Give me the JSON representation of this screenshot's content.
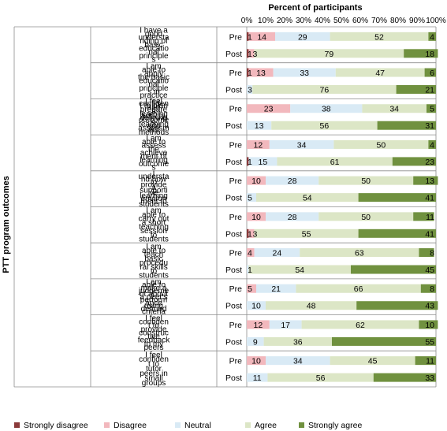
{
  "chart_data": {
    "type": "bar",
    "stacked": true,
    "orientation": "horizontal",
    "title": "Percent of participants",
    "ylabel": "PTT program outcomes",
    "x_ticks": [
      "0%",
      "10%",
      "20%",
      "30%",
      "40%",
      "50%",
      "60%",
      "70%",
      "80%",
      "90%",
      "100%"
    ],
    "xlim": [
      0,
      100
    ],
    "series": [
      {
        "name": "Strongly disagree",
        "color": "#8b3a3a"
      },
      {
        "name": "Disagree",
        "color": "#f2b8bd"
      },
      {
        "name": "Neutral",
        "color": "#d9eaf5"
      },
      {
        "name": "Agree",
        "color": "#dce6c6"
      },
      {
        "name": "Strongly agree",
        "color": "#70913f"
      }
    ],
    "legend_position": "bottom",
    "groups": [
      {
        "category_lines": [
          "I have a",
          "good",
          "understa",
          "nding of",
          "basic",
          "educatio",
          "nal",
          "principle",
          "s"
        ],
        "rows": [
          {
            "label": "Pre",
            "values": [
              1,
              14,
              29,
              52,
              4
            ]
          },
          {
            "label": "Post",
            "values": [
              1,
              3,
              0,
              79,
              18
            ]
          }
        ]
      },
      {
        "category_lines": [
          "I am",
          "able to",
          "apply",
          "the basic",
          "educatio",
          "nal",
          "principle",
          "s in",
          "practice"
        ],
        "rows": [
          {
            "label": "Pre",
            "values": [
              1,
              13,
              33,
              47,
              6
            ]
          },
          {
            "label": "Post",
            "values": [
              0,
              0,
              3,
              76,
              21
            ]
          }
        ]
      },
      {
        "category_lines": [
          "I feel",
          "confiden",
          "t to plan",
          "and",
          "prepare",
          "a",
          "learning",
          "activity,",
          "defining",
          "outcome",
          "s,",
          "teaching",
          "and",
          "assessm",
          "ent",
          "methods"
        ],
        "rows": [
          {
            "label": "Pre",
            "values": [
              0,
              23,
              38,
              34,
              5
            ]
          },
          {
            "label": "Post",
            "values": [
              0,
              0,
              13,
              56,
              31
            ]
          }
        ]
      },
      {
        "category_lines": [
          "I am",
          "able to",
          "assess",
          "the",
          "achieve",
          "ment of",
          "learning",
          "outcome",
          "s"
        ],
        "rows": [
          {
            "label": "Pre",
            "values": [
              0,
              12,
              34,
              50,
              4
            ]
          },
          {
            "label": "Post",
            "values": [
              1,
              0,
              15,
              61,
              23
            ]
          }
        ]
      },
      {
        "category_lines": [
          "I",
          "understa",
          "nd how",
          "to",
          "provide",
          "a",
          "supporti",
          "ve",
          "learning",
          "environ",
          "ment to",
          "students"
        ],
        "rows": [
          {
            "label": "Pre",
            "values": [
              0,
              10,
              28,
              50,
              13
            ]
          },
          {
            "label": "Post",
            "values": [
              0,
              0,
              5,
              54,
              41
            ]
          }
        ]
      },
      {
        "category_lines": [
          "I am",
          "able to",
          "carry out",
          "a short",
          "teaching",
          "session",
          "to",
          "students"
        ],
        "rows": [
          {
            "label": "Pre",
            "values": [
              0,
              10,
              28,
              50,
              11
            ]
          },
          {
            "label": "Post",
            "values": [
              1,
              3,
              0,
              55,
              41
            ]
          }
        ]
      },
      {
        "category_lines": [
          "I am",
          "able to",
          "teach",
          "basic",
          "procedu",
          "ral skills",
          "to",
          "students"
        ],
        "rows": [
          {
            "label": "Pre",
            "values": [
              0,
              4,
              24,
              63,
              8
            ]
          },
          {
            "label": "Post",
            "values": [
              0,
              0,
              1,
              54,
              45
            ]
          }
        ]
      },
      {
        "category_lines": [
          "I am",
          "able to",
          "make a",
          "judgeme",
          "nt about",
          "a peer's",
          "perform",
          "ance",
          "using",
          "defined",
          "criteria"
        ],
        "rows": [
          {
            "label": "Pre",
            "values": [
              0,
              5,
              21,
              66,
              8
            ]
          },
          {
            "label": "Post",
            "values": [
              0,
              0,
              10,
              48,
              43
            ]
          }
        ]
      },
      {
        "category_lines": [
          "I feel",
          "confiden",
          "t to",
          "provide",
          "construc",
          "tive",
          "feedback",
          "to my",
          "peers"
        ],
        "rows": [
          {
            "label": "Pre",
            "values": [
              0,
              12,
              17,
              62,
              10
            ]
          },
          {
            "label": "Post",
            "values": [
              0,
              0,
              9,
              36,
              55
            ]
          }
        ]
      },
      {
        "category_lines": [
          "I feel",
          "confiden",
          "t to",
          "tutor",
          "peers in",
          "small",
          "groups"
        ],
        "rows": [
          {
            "label": "Pre",
            "values": [
              0,
              10,
              34,
              45,
              11
            ]
          },
          {
            "label": "Post",
            "values": [
              0,
              0,
              11,
              56,
              33
            ]
          }
        ]
      }
    ]
  }
}
